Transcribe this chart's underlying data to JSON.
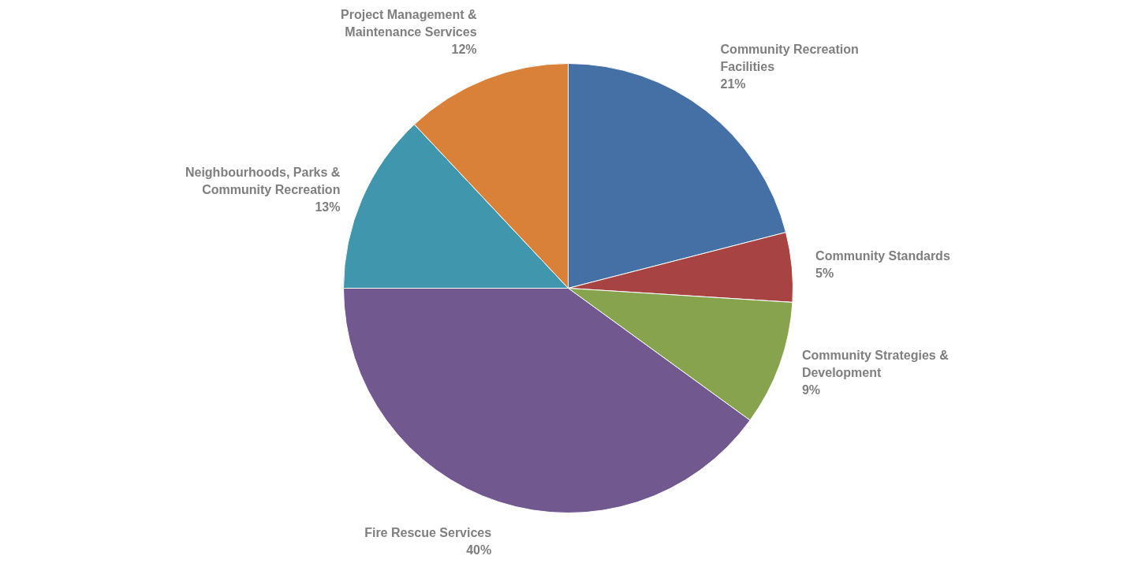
{
  "chart_data": {
    "type": "pie",
    "categories": [
      "Community Recreation Facilities",
      "Community Standards",
      "Community Strategies & Development",
      "Fire Rescue Services",
      "Neighbourhoods, Parks & Community Recreation",
      "Project Management & Maintenance Services"
    ],
    "values": [
      21,
      5,
      9,
      40,
      13,
      12
    ],
    "value_labels": [
      "21%",
      "5%",
      "9%",
      "40%",
      "13%",
      "12%"
    ],
    "colors": [
      "#4470a5",
      "#a84343",
      "#87a34d",
      "#71588f",
      "#4096ac",
      "#d98039"
    ]
  }
}
